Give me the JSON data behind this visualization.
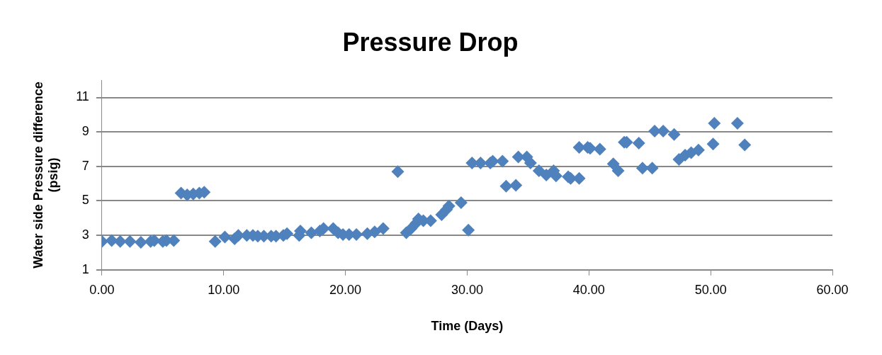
{
  "chart_data": {
    "type": "scatter",
    "title": "Pressure Drop",
    "xlabel": "Time (Days)",
    "ylabel": "Water side Pressure difference (psig)",
    "marker": "diamond",
    "grid": "y",
    "xlim": [
      0,
      60
    ],
    "ylim": [
      1,
      12
    ],
    "xticks": [
      {
        "value": 0,
        "label": "0.00"
      },
      {
        "value": 10,
        "label": "10.00"
      },
      {
        "value": 20,
        "label": "20.00"
      },
      {
        "value": 30,
        "label": "30.00"
      },
      {
        "value": 40,
        "label": "40.00"
      },
      {
        "value": 50,
        "label": "50.00"
      },
      {
        "value": 60,
        "label": "60.00"
      }
    ],
    "yticks": [
      1,
      3,
      5,
      7,
      9,
      11
    ],
    "series": [
      {
        "color": "#4f81bd",
        "x": [
          0.0,
          0.8,
          1.5,
          2.3,
          3.2,
          4.0,
          4.3,
          5.0,
          5.3,
          5.9,
          6.5,
          7.0,
          7.5,
          8.0,
          8.4,
          9.3,
          10.1,
          10.9,
          11.2,
          11.9,
          12.4,
          12.8,
          13.3,
          13.9,
          14.3,
          14.9,
          15.2,
          16.2,
          16.3,
          17.2,
          17.9,
          18.2,
          19.0,
          19.4,
          19.8,
          20.3,
          20.9,
          21.8,
          22.4,
          23.1,
          24.3,
          25.0,
          25.4,
          25.8,
          26.0,
          26.4,
          27.0,
          27.9,
          28.3,
          28.5,
          29.5,
          30.1,
          30.4,
          31.1,
          31.9,
          32.1,
          32.9,
          33.2,
          34.0,
          34.2,
          34.9,
          35.2,
          35.9,
          36.5,
          37.1,
          37.3,
          38.3,
          38.5,
          39.2,
          39.2,
          39.9,
          40.1,
          40.9,
          42.0,
          42.4,
          42.9,
          43.1,
          44.1,
          44.4,
          45.2,
          45.4,
          46.1,
          47.0,
          47.4,
          47.9,
          48.4,
          49.0,
          50.2,
          50.3,
          52.2,
          52.8
        ],
        "values": [
          2.65,
          2.7,
          2.65,
          2.65,
          2.6,
          2.65,
          2.7,
          2.65,
          2.7,
          2.7,
          5.45,
          5.35,
          5.4,
          5.45,
          5.5,
          2.65,
          2.9,
          2.8,
          3.0,
          3.0,
          3.0,
          2.95,
          2.95,
          2.95,
          2.95,
          3.0,
          3.1,
          3.0,
          3.25,
          3.15,
          3.25,
          3.4,
          3.4,
          3.15,
          3.05,
          3.05,
          3.05,
          3.1,
          3.2,
          3.4,
          6.7,
          3.15,
          3.4,
          3.7,
          3.95,
          3.85,
          3.85,
          4.2,
          4.5,
          4.7,
          4.9,
          3.3,
          7.2,
          7.2,
          7.2,
          7.3,
          7.3,
          5.85,
          5.9,
          7.55,
          7.55,
          7.2,
          6.75,
          6.5,
          6.75,
          6.45,
          6.4,
          6.3,
          6.3,
          8.1,
          8.1,
          8.05,
          8.0,
          7.15,
          6.75,
          8.4,
          8.4,
          8.35,
          6.9,
          6.9,
          9.05,
          9.05,
          8.85,
          7.4,
          7.65,
          7.8,
          7.95,
          8.3,
          9.5,
          9.5,
          8.25
        ]
      }
    ]
  }
}
